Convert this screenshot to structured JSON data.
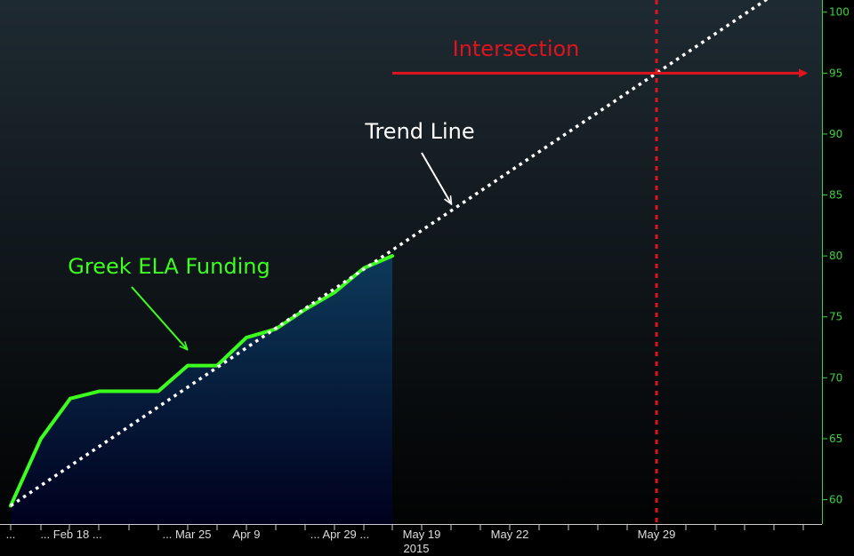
{
  "chart_data": {
    "type": "area",
    "ylim": [
      58,
      101
    ],
    "y_ticks": [
      60,
      65,
      70,
      75,
      80,
      85,
      90,
      95,
      100
    ],
    "x_tick_labels": [
      "...",
      "... Feb 18 ...",
      "... Mar 25",
      "Apr 9",
      "... Apr 29 ...",
      "May 19",
      "May 22",
      "May 29"
    ],
    "year_label": "2015",
    "series": [
      {
        "name": "Greek ELA Funding",
        "values": [
          59.5,
          65.0,
          68.3,
          68.9,
          68.9,
          68.9,
          71.0,
          71.0,
          73.3,
          74.0,
          75.6,
          77.0,
          79.0,
          80.0
        ]
      },
      {
        "name": "Trend Line",
        "line_start": 59.5,
        "line_end_at_intersection": 95
      }
    ],
    "annotations": {
      "series_label": "Greek ELA Funding",
      "trend_label": "Trend Line",
      "intersection_label": "Intersection",
      "intersection_value": 95,
      "intersection_date": "May 29"
    },
    "colors": {
      "series": "#3cff1e",
      "fill_top": "#0d3a5a",
      "fill_bottom": "#00001e",
      "trend": "#ffffff",
      "intersection": "#e0141e",
      "axis_text": "#3cd23c",
      "background_top": "#1e2a32",
      "background_bottom": "#000000"
    }
  }
}
